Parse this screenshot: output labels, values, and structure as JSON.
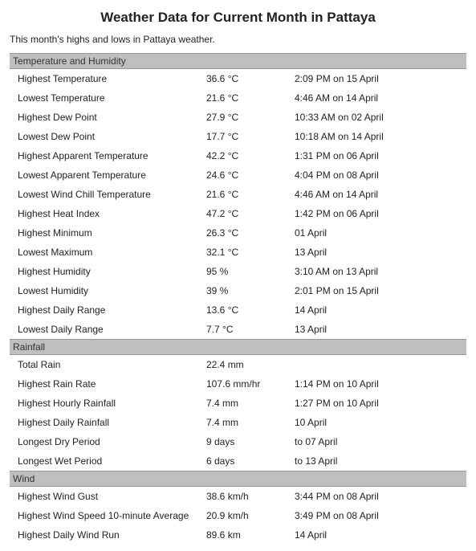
{
  "title": "Weather Data for Current Month in Pattaya",
  "subtitle": "This month's highs and lows in Pattaya weather.",
  "sections": [
    {
      "header": "Temperature and Humidity",
      "rows": [
        {
          "label": "Highest Temperature",
          "value": "36.6 °C",
          "time": "2:09 PM on 15 April"
        },
        {
          "label": "Lowest Temperature",
          "value": "21.6 °C",
          "time": "4:46 AM on 14 April"
        },
        {
          "label": "Highest Dew Point",
          "value": "27.9 °C",
          "time": "10:33 AM on 02 April"
        },
        {
          "label": "Lowest Dew Point",
          "value": "17.7 °C",
          "time": "10:18 AM on 14 April"
        },
        {
          "label": "Highest Apparent Temperature",
          "value": "42.2 °C",
          "time": "1:31 PM on 06 April"
        },
        {
          "label": "Lowest Apparent Temperature",
          "value": "24.6 °C",
          "time": "4:04 PM on 08 April"
        },
        {
          "label": "Lowest Wind Chill Temperature",
          "value": "21.6 °C",
          "time": "4:46 AM on 14 April"
        },
        {
          "label": "Highest Heat Index",
          "value": "47.2 °C",
          "time": "1:42 PM on 06 April"
        },
        {
          "label": "Highest Minimum",
          "value": "26.3 °C",
          "time": "01 April"
        },
        {
          "label": "Lowest Maximum",
          "value": "32.1 °C",
          "time": "13 April"
        },
        {
          "label": "Highest Humidity",
          "value": "95 %",
          "time": "3:10 AM on 13 April"
        },
        {
          "label": "Lowest Humidity",
          "value": "39 %",
          "time": "2:01 PM on 15 April"
        },
        {
          "label": "Highest Daily Range",
          "value": "13.6 °C",
          "time": "14 April"
        },
        {
          "label": "Lowest Daily Range",
          "value": "7.7 °C",
          "time": "13 April"
        }
      ]
    },
    {
      "header": "Rainfall",
      "rows": [
        {
          "label": "Total Rain",
          "value": "22.4 mm",
          "time": ""
        },
        {
          "label": "Highest Rain Rate",
          "value": "107.6 mm/hr",
          "time": "1:14 PM on 10 April"
        },
        {
          "label": "Highest Hourly Rainfall",
          "value": "7.4 mm",
          "time": "1:27 PM on 10 April"
        },
        {
          "label": "Highest Daily Rainfall",
          "value": "7.4 mm",
          "time": "10 April"
        },
        {
          "label": "Longest Dry Period",
          "value": "9 days",
          "time": "to 07 April"
        },
        {
          "label": "Longest Wet Period",
          "value": "6 days",
          "time": "to 13 April"
        }
      ]
    },
    {
      "header": "Wind",
      "rows": [
        {
          "label": "Highest Wind Gust",
          "value": "38.6 km/h",
          "time": "3:44 PM on 08 April"
        },
        {
          "label": "Highest Wind Speed 10-minute Average",
          "value": "20.9 km/h",
          "time": "3:49 PM on 08 April"
        },
        {
          "label": "Highest Daily Wind Run",
          "value": "89.6 km",
          "time": "14 April"
        }
      ]
    }
  ]
}
